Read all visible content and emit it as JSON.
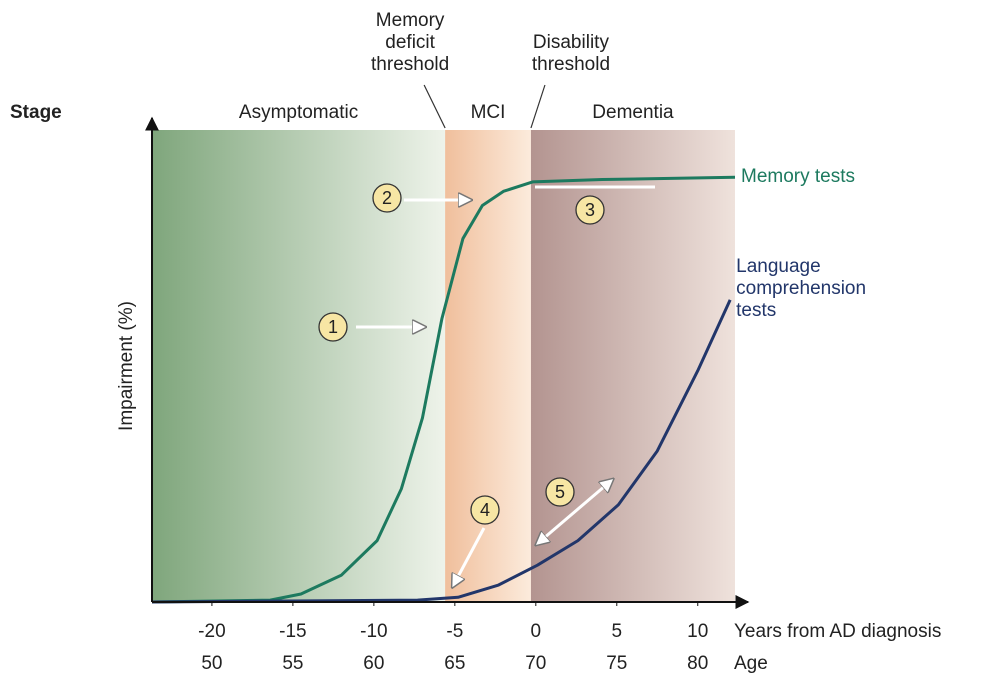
{
  "chart_data": {
    "type": "line",
    "y_label": "Impairment (%)",
    "x_label": "Years from AD diagnosis",
    "age_label": "Age",
    "stage_label": "Stage",
    "xlim": [
      -23.7,
      12.3
    ],
    "ylim": [
      0,
      100
    ],
    "xticks": [
      -20,
      -15,
      -10,
      -5,
      0,
      5,
      10
    ],
    "age_ticks": [
      {
        "value": -20,
        "label": "50"
      },
      {
        "value": -15,
        "label": "55"
      },
      {
        "value": -10,
        "label": "60"
      },
      {
        "value": -5,
        "label": "65"
      },
      {
        "value": 0,
        "label": "70"
      },
      {
        "value": 5,
        "label": "75"
      },
      {
        "value": 10,
        "label": "80"
      }
    ],
    "stages": [
      {
        "name": "Asymptomatic",
        "start": -23.7,
        "end": -5.6,
        "colors": [
          "#7fa67c",
          "#eef3ea"
        ]
      },
      {
        "name": "MCI",
        "start": -5.6,
        "end": -0.3,
        "colors": [
          "#f0bf9c",
          "#fcebdc"
        ]
      },
      {
        "name": "Dementia",
        "start": -0.3,
        "end": 12.3,
        "colors": [
          "#b39490",
          "#efe2dc"
        ]
      }
    ],
    "thresholds": [
      {
        "name": "Memory deficit threshold",
        "x": -5.6
      },
      {
        "name": "Disability threshold",
        "x": -0.3
      }
    ],
    "annotations": [
      "1",
      "2",
      "3",
      "4",
      "5"
    ],
    "series": [
      {
        "name": "Memory tests",
        "color": "#1d7a5f",
        "x": [
          -23.7,
          -16.4,
          -14.5,
          -12.0,
          -9.8,
          -8.3,
          -7.0,
          -5.8,
          -4.5,
          -3.3,
          -2.0,
          -0.2,
          4.1,
          12.3
        ],
        "values": [
          0,
          0.4,
          1.7,
          5.7,
          13,
          24,
          39,
          60,
          77,
          84,
          87,
          89,
          89.5,
          90
        ]
      },
      {
        "name": "Language comprehension tests",
        "color": "#22366a",
        "x": [
          -23.7,
          -7.3,
          -4.8,
          -2.3,
          0.1,
          2.6,
          5.1,
          7.5,
          10.0,
          12.0
        ],
        "values": [
          0,
          0.4,
          1,
          3.6,
          7.8,
          13,
          20.6,
          32,
          49,
          64
        ]
      }
    ]
  }
}
